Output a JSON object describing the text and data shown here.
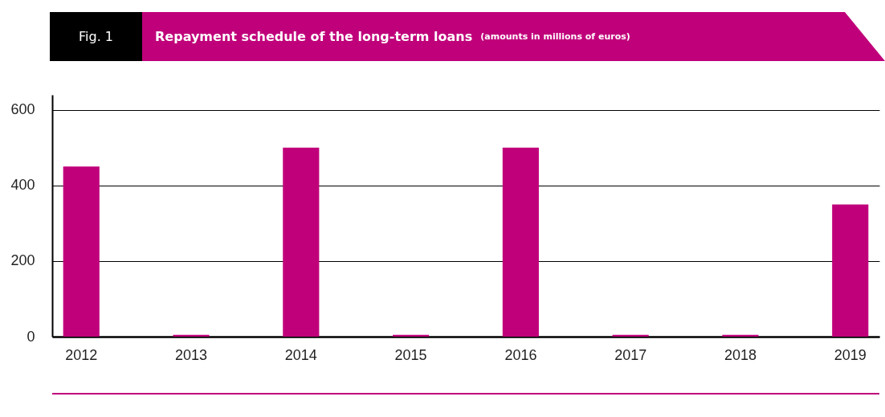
{
  "chart_data": {
    "type": "bar",
    "title": "Repayment schedule of the long-term loans",
    "subtitle": "(amounts in millions of euros)",
    "annotations": [
      "Fig. 1"
    ],
    "categories": [
      "2012",
      "2013",
      "2014",
      "2015",
      "2016",
      "2017",
      "2018",
      "2019"
    ],
    "values": [
      450,
      5,
      500,
      5,
      500,
      5,
      5,
      350
    ],
    "color": "#c0007a",
    "ylim": [
      0,
      640
    ],
    "yticks": [
      0,
      200,
      400,
      600
    ],
    "grid": "y"
  }
}
